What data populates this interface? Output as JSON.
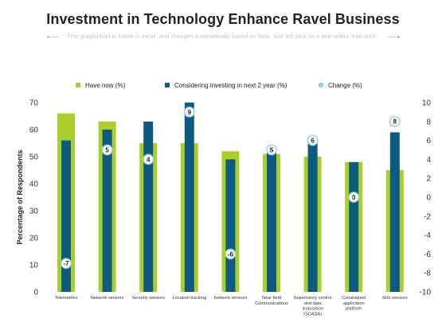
{
  "title": "Investment in Technology  Enhance Ravel Business",
  "subtitle": "This graph/chart is linked to excel, and changes automatically based on data. Just left click on it and select \"edit data\".",
  "colors": {
    "have_now": "#a8cf2a",
    "considering": "#0e5a80",
    "change": "#8ad3ee",
    "text": "#222222"
  },
  "chart_data": {
    "type": "bar",
    "title": "Investment in Technology  Enhance Ravel Business",
    "ylabel": "Percentage of Respondents",
    "ylim": [
      0,
      70
    ],
    "yticks": [
      "0",
      "10",
      "20",
      "30",
      "40",
      "50",
      "60",
      "70"
    ],
    "y2lim": [
      -10,
      10
    ],
    "y2ticks": [
      "-10",
      "-8",
      "-6",
      "-4",
      "-2",
      "0",
      "2",
      "4",
      "6",
      "8",
      "10"
    ],
    "legend_position": "top",
    "categories": [
      [
        "Telemetries"
      ],
      [
        "Network sensors"
      ],
      [
        "Security sensors"
      ],
      [
        "Location tracking"
      ],
      [
        "Network sensors"
      ],
      [
        "Near field",
        "Communications"
      ],
      [
        "Supervisory control",
        "and data",
        "acquisition",
        "(SCADA)"
      ],
      [
        "Constrained",
        "application",
        "platform"
      ],
      [
        "Grib sensors"
      ]
    ],
    "series": [
      {
        "name": "Have now (%)",
        "axis": "left",
        "values": [
          66,
          63,
          55,
          55,
          52,
          51,
          50,
          48,
          45
        ]
      },
      {
        "name": "Considering investing in next 2 year (%)",
        "axis": "left",
        "values": [
          56,
          60,
          63,
          70,
          49,
          52,
          56,
          48,
          59
        ]
      },
      {
        "name": "Change (%)",
        "axis": "right",
        "values": [
          -7,
          5,
          4,
          9,
          -6,
          5,
          6,
          0,
          8
        ]
      }
    ]
  }
}
